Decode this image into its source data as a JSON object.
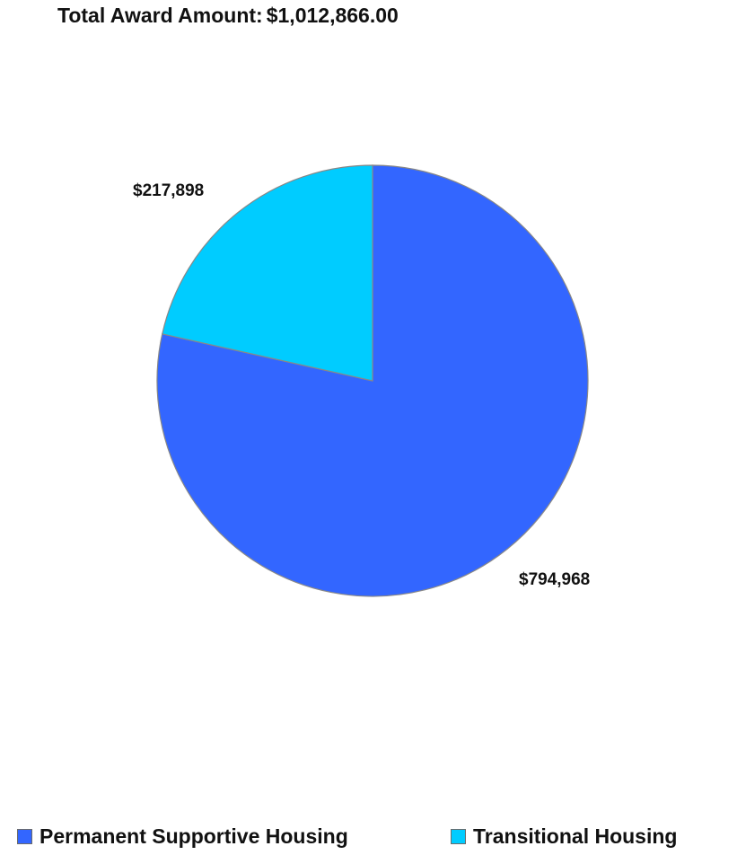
{
  "header": {
    "label": "Total Award Amount:",
    "value": "$1,012,866.00"
  },
  "colors": {
    "permanent": "#3366ff",
    "transitional": "#00ccff",
    "slice_border": "#888888"
  },
  "chart_data": {
    "type": "pie",
    "title": "Total Award Amount:$1,012,866.00",
    "categories": [
      "Permanent Supportive Housing",
      "Transitional Housing"
    ],
    "values": [
      794968,
      217898
    ],
    "data_labels": [
      "$794,968",
      "$217,898"
    ],
    "legend_position": "bottom",
    "start": "top, clockwise"
  },
  "legend": {
    "items": [
      {
        "label": "Permanent Supportive Housing"
      },
      {
        "label": "Transitional Housing"
      }
    ]
  }
}
